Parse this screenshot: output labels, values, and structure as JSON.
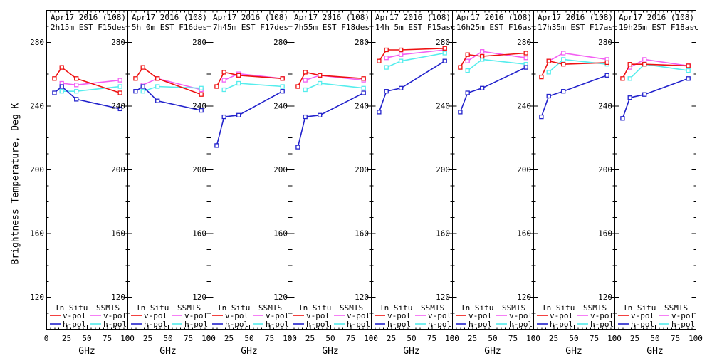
{
  "chart_data": {
    "type": "line",
    "title": "",
    "xlabel": "GHz",
    "ylabel": "Brightness Temperature, Deg K",
    "xlim": [
      0,
      100
    ],
    "ylim": [
      100,
      300
    ],
    "x_major_ticks": [
      0,
      25,
      50,
      75,
      100
    ],
    "y_major_ticks": [
      120,
      160,
      200,
      240,
      280
    ],
    "x_minor_step": 5,
    "y_minor_step": 10,
    "grid": false,
    "legend": {
      "position": "bottom-inside-each-panel",
      "group1": "In Situ",
      "group2": "SSMIS",
      "vpol": "v-pol",
      "hpol": "h-pol"
    },
    "colors": {
      "insitu_v": "#ee1111",
      "insitu_h": "#2222cc",
      "ssmis_v": "#f35ff3",
      "ssmis_h": "#55eded",
      "axis": "#000000",
      "background": "#ffffff"
    },
    "insitu_x_ghz": [
      10,
      19,
      37,
      91
    ],
    "ssmis_x_ghz": [
      19,
      37,
      91
    ],
    "panels": [
      {
        "title_line1": "Apr17 2016 (108)",
        "title_line2": "2h15m EST F15des",
        "insitu_v": [
          257,
          264,
          257,
          248
        ],
        "insitu_h": [
          248,
          252,
          244,
          238
        ],
        "ssmis_v": [
          254,
          253,
          256
        ],
        "ssmis_h": [
          249,
          249,
          252
        ]
      },
      {
        "title_line1": "Apr17 2016 (108)",
        "title_line2": "5h 0m EST F16des",
        "insitu_v": [
          257,
          264,
          257,
          247
        ],
        "insitu_h": [
          249,
          252,
          243,
          237
        ],
        "ssmis_v": [
          253,
          257,
          250
        ],
        "ssmis_h": [
          249,
          252,
          251
        ]
      },
      {
        "title_line1": "Apr17 2016 (108)",
        "title_line2": "7h45m EST F17des",
        "insitu_v": [
          252,
          261,
          259,
          257
        ],
        "insitu_h": [
          215,
          233,
          234,
          249
        ],
        "ssmis_v": [
          256,
          260,
          257
        ],
        "ssmis_h": [
          250,
          254,
          252
        ]
      },
      {
        "title_line1": "Apr17 2016 (108)",
        "title_line2": "7h55m EST F18des",
        "insitu_v": [
          252,
          261,
          259,
          257
        ],
        "insitu_h": [
          214,
          233,
          234,
          248
        ],
        "ssmis_v": [
          256,
          259,
          256
        ],
        "ssmis_h": [
          250,
          254,
          251
        ]
      },
      {
        "title_line1": "Apr17 2016 (108)",
        "title_line2": "14h 5m EST F15asc",
        "insitu_v": [
          268,
          275,
          275,
          276
        ],
        "insitu_h": [
          236,
          249,
          251,
          268
        ],
        "ssmis_v": [
          270,
          272,
          275
        ],
        "ssmis_h": [
          264,
          268,
          273
        ]
      },
      {
        "title_line1": "Apr17 2016 (108)",
        "title_line2": "16h25m EST F16asc",
        "insitu_v": [
          264,
          272,
          271,
          273
        ],
        "insitu_h": [
          236,
          248,
          251,
          264
        ],
        "ssmis_v": [
          268,
          274,
          270
        ],
        "ssmis_h": [
          262,
          269,
          266
        ]
      },
      {
        "title_line1": "Apr17 2016 (108)",
        "title_line2": "17h35m EST F17asc",
        "insitu_v": [
          258,
          268,
          266,
          267
        ],
        "insitu_h": [
          233,
          246,
          249,
          259
        ],
        "ssmis_v": [
          268,
          273,
          269
        ],
        "ssmis_h": [
          261,
          269,
          266
        ]
      },
      {
        "title_line1": "Apr17 2016 (108)",
        "title_line2": "19h25m EST F18asc",
        "insitu_v": [
          257,
          266,
          266,
          265
        ],
        "insitu_h": [
          232,
          245,
          247,
          257
        ],
        "ssmis_v": [
          264,
          269,
          265
        ],
        "ssmis_h": [
          257,
          266,
          262
        ]
      }
    ]
  }
}
